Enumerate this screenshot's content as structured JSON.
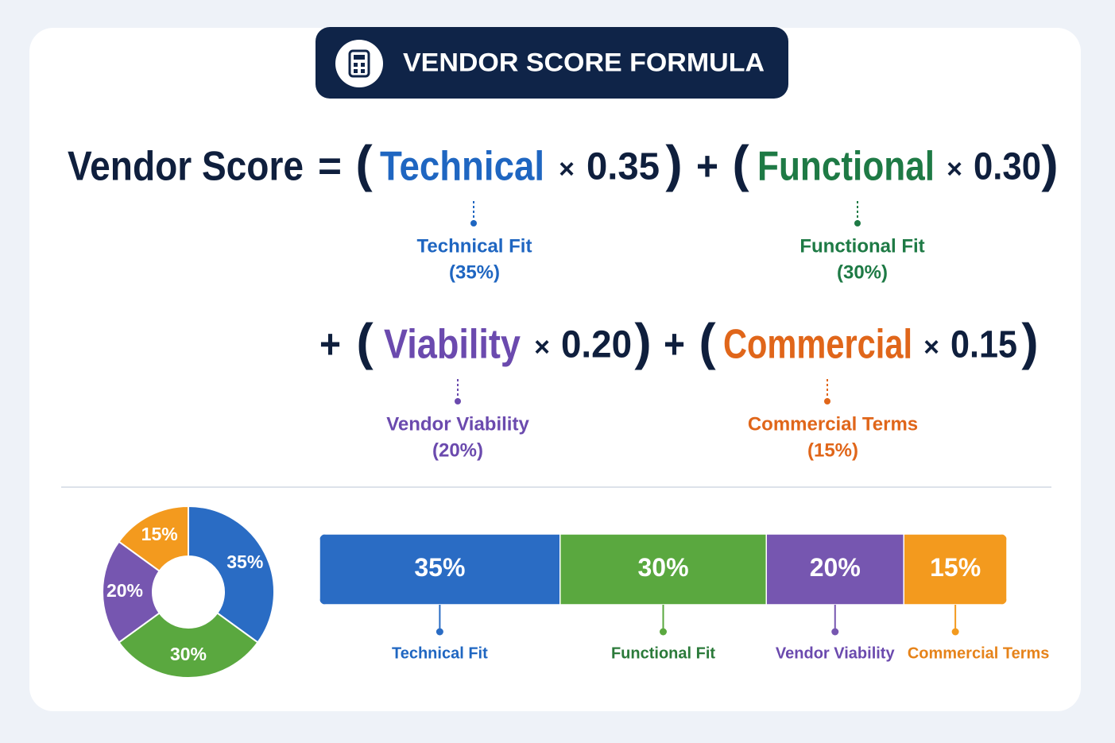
{
  "header": {
    "title": "VENDOR SCORE FORMULA"
  },
  "formula": {
    "lhs": "Vendor Score",
    "equals": "=",
    "plus": "+",
    "times": "×",
    "open": "(",
    "close": ")"
  },
  "weights": [
    {
      "name": "Technical",
      "factor": "0.35",
      "label": "Technical Fit",
      "percent": "(35%)",
      "value": 35,
      "value_label": "35%",
      "color": "#1f66c1",
      "fill": "#2a6cc4"
    },
    {
      "name": "Functional",
      "factor": "0.30",
      "label": "Functional Fit",
      "percent": "(30%)",
      "value": 30,
      "value_label": "30%",
      "color": "#1e7a45",
      "fill": "#5aa83f"
    },
    {
      "name": "Viability",
      "factor": "0.20",
      "label": "Vendor Viability",
      "percent": "(20%)",
      "value": 20,
      "value_label": "20%",
      "color": "#6b4aae",
      "fill": "#7656b0"
    },
    {
      "name": "Commercial",
      "factor": "0.15",
      "label": "Commercial Terms",
      "percent": "(15%)",
      "value": 15,
      "value_label": "15%",
      "color": "#e0661a",
      "fill": "#f39a1e"
    }
  ]
}
